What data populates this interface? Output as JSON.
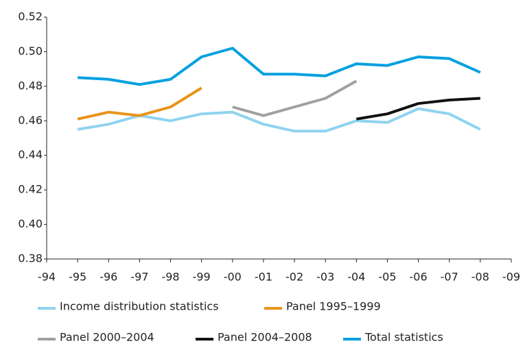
{
  "chart_data": {
    "type": "line",
    "categories": [
      "-94",
      "-95",
      "-96",
      "-97",
      "-98",
      "-99",
      "-00",
      "-01",
      "-02",
      "-03",
      "-04",
      "-05",
      "-06",
      "-07",
      "-08",
      "-09"
    ],
    "series": [
      {
        "name": "Income distribution statistics",
        "color": "#8fd3f0",
        "values": [
          null,
          0.455,
          0.458,
          0.463,
          0.46,
          0.464,
          0.465,
          0.458,
          0.454,
          0.454,
          0.46,
          0.459,
          0.467,
          0.464,
          0.455,
          null
        ]
      },
      {
        "name": "Panel 1995–1999",
        "color": "#e8941a",
        "values": [
          null,
          0.461,
          0.465,
          0.463,
          0.468,
          0.479,
          null,
          null,
          null,
          null,
          null,
          null,
          null,
          null,
          null,
          null
        ]
      },
      {
        "name": "Panel 2000–2004",
        "color": "#a0a0a0",
        "values": [
          null,
          null,
          null,
          null,
          null,
          null,
          0.468,
          0.463,
          0.468,
          0.473,
          0.483,
          null,
          null,
          null,
          null,
          null
        ]
      },
      {
        "name": "Panel 2004–2008",
        "color": "#111111",
        "values": [
          null,
          null,
          null,
          null,
          null,
          null,
          null,
          null,
          null,
          null,
          0.461,
          0.464,
          0.47,
          0.472,
          0.473,
          null
        ]
      },
      {
        "name": "Total statistics",
        "color": "#00a0e0",
        "values": [
          null,
          0.485,
          0.484,
          0.481,
          0.484,
          0.497,
          0.502,
          0.487,
          0.487,
          0.486,
          0.493,
          0.492,
          0.497,
          0.496,
          0.488,
          null
        ]
      }
    ],
    "ylim": [
      0.38,
      0.52
    ],
    "yticks": [
      0.38,
      {
        "value": 0.4,
        "label": "0.40"
      },
      0.42,
      0.44,
      0.46,
      0.48,
      {
        "value": 0.5,
        "label": "0.50"
      },
      0.52
    ],
    "grid": false
  }
}
